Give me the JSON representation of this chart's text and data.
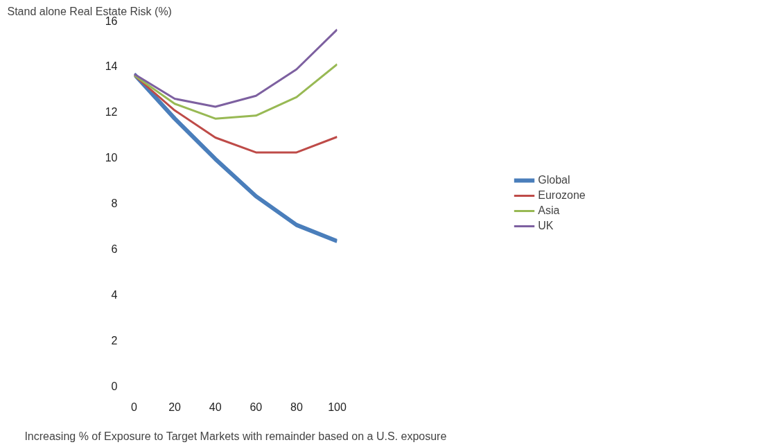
{
  "chart_data": {
    "type": "line",
    "ylabel": "Stand alone Real Estate Risk (%)",
    "xlabel": "Increasing % of Exposure to Target Markets with remainder based on a U.S. exposure",
    "x": [
      0,
      20,
      40,
      60,
      80,
      100
    ],
    "series": [
      {
        "name": "Global",
        "color": "#4a7ebb",
        "values": [
          13.65,
          11.7,
          9.93,
          8.3,
          7.04,
          6.33
        ]
      },
      {
        "name": "Eurozone",
        "color": "#be4b48",
        "values": [
          13.6,
          12.06,
          10.87,
          10.22,
          10.22,
          10.9
        ]
      },
      {
        "name": "Asia",
        "color": "#98b954",
        "values": [
          13.6,
          12.35,
          11.7,
          11.83,
          12.64,
          14.08
        ]
      },
      {
        "name": "UK",
        "color": "#7d60a0",
        "values": [
          13.65,
          12.57,
          12.22,
          12.7,
          13.86,
          15.6
        ]
      }
    ],
    "xlim": [
      0,
      100
    ],
    "xticks": [
      0,
      20,
      40,
      60,
      80,
      100
    ],
    "ylim": [
      0,
      16
    ],
    "yticks": [
      0,
      2,
      4,
      6,
      8,
      10,
      12,
      14,
      16
    ],
    "grid": false,
    "legend": "right",
    "marker": "none",
    "line_style": "solid"
  }
}
